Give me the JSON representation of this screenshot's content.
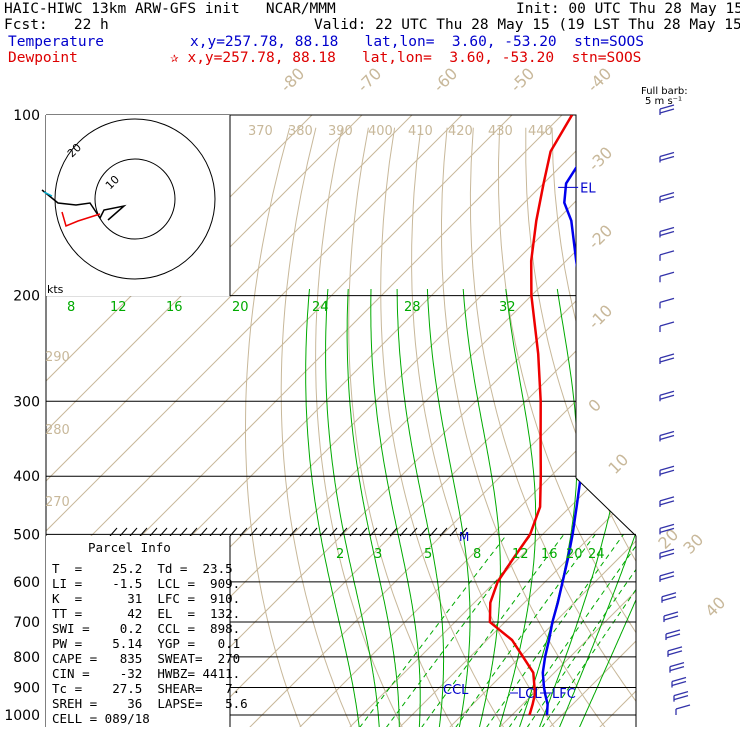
{
  "header": {
    "title": "HAIC-HIWC 13km ARW-GFS init   NCAR/MMM",
    "init": "Init: 00 UTC Thu 28 May 15",
    "fcst": "Fcst:   22 h",
    "valid": "Valid: 22 UTC Thu 28 May 15 (19 LST Thu 28 May 15)",
    "temp_label": "Temperature",
    "temp_readout": "x,y=257.78, 88.18   lat,lon=  3.60, -53.20  stn=SOOS",
    "dew_label": "Dewpoint",
    "dew_readout": "✰ x,y=257.78, 88.18   lat,lon=  3.60, -53.20  stn=SOOS"
  },
  "barb_legend": {
    "line1": "Full barb:",
    "line2": "5 m s⁻¹"
  },
  "hodograph": {
    "unit": "kts",
    "ring_labels": [
      "10",
      "20"
    ]
  },
  "parcel_info": {
    "title": "Parcel Info",
    "rows": [
      "T  =    25.2  Td =  23.5",
      "LI =    -1.5  LCL =  909.",
      "K  =      31  LFC =  910.",
      "TT =      42  EL  =  132.",
      "SWI =    0.2  CCL =  898.",
      "PW =    5.14  YGP =   0.1",
      "CAPE =   835  SWEAT=  270",
      "CIN =    -32  HWBZ= 4411.",
      "Tc =    27.5  SHEAR=   7.",
      "SREH =    36  LAPSE=   5.6",
      "CELL = 089/18"
    ]
  },
  "colors": {
    "temperature": "#0000ee",
    "dewpoint": "#ee0000",
    "isotherm": "#c8b89a",
    "adiabat": "#00aa00",
    "isobar": "#000000"
  },
  "chart_data": {
    "type": "line",
    "diagram": "skew-T log-p",
    "pressure_levels": [
      "100",
      "200",
      "300",
      "400",
      "500",
      "600",
      "700",
      "800",
      "900",
      "1000"
    ],
    "isotherm_labels": [
      "-80",
      "-70",
      "-60",
      "-50",
      "-40",
      "-30",
      "-20",
      "-10",
      "0",
      "10",
      "20",
      "30",
      "40"
    ],
    "theta_e_labels": [
      "370",
      "380",
      "390",
      "400",
      "410",
      "420",
      "430",
      "440"
    ],
    "theta_labels": [
      "290",
      "280",
      "270"
    ],
    "moist_adiabat_labels": [
      "8",
      "12",
      "16",
      "20",
      "24",
      "28",
      "32"
    ],
    "mixing_ratio_labels": [
      "2",
      "3",
      "5",
      "8",
      "12",
      "16",
      "20",
      "24"
    ],
    "annotations": [
      "EL",
      "CCL",
      "LCL",
      "LFC",
      "M"
    ],
    "series": [
      {
        "name": "Temperature",
        "points": [
          {
            "p": 1000,
            "t": 27
          },
          {
            "p": 960,
            "t": 25
          },
          {
            "p": 925,
            "t": 22.6
          },
          {
            "p": 900,
            "t": 20.9
          },
          {
            "p": 850,
            "t": 17.7
          },
          {
            "p": 800,
            "t": 15
          },
          {
            "p": 750,
            "t": 12.4
          },
          {
            "p": 700,
            "t": 9.5
          },
          {
            "p": 650,
            "t": 6.7
          },
          {
            "p": 600,
            "t": 3.5
          },
          {
            "p": 550,
            "t": 0
          },
          {
            "p": 500,
            "t": -4
          },
          {
            "p": 450,
            "t": -8.7
          },
          {
            "p": 400,
            "t": -14
          },
          {
            "p": 350,
            "t": -20.3
          },
          {
            "p": 300,
            "t": -28
          },
          {
            "p": 250,
            "t": -37.6
          },
          {
            "p": 200,
            "t": -50
          },
          {
            "p": 175,
            "t": -58
          },
          {
            "p": 150,
            "t": -67
          },
          {
            "p": 140,
            "t": -72
          },
          {
            "p": 130,
            "t": -75.5
          },
          {
            "p": 120,
            "t": -77
          },
          {
            "p": 110,
            "t": -76
          },
          {
            "p": 100,
            "t": -75
          }
        ]
      },
      {
        "name": "Dewpoint",
        "points": [
          {
            "p": 1000,
            "t": 23.5
          },
          {
            "p": 960,
            "t": 22
          },
          {
            "p": 925,
            "t": 20.5
          },
          {
            "p": 900,
            "t": 19
          },
          {
            "p": 850,
            "t": 15.8
          },
          {
            "p": 800,
            "t": 10.6
          },
          {
            "p": 750,
            "t": 5
          },
          {
            "p": 700,
            "t": -3
          },
          {
            "p": 650,
            "t": -6.8
          },
          {
            "p": 600,
            "t": -9.5
          },
          {
            "p": 550,
            "t": -11
          },
          {
            "p": 500,
            "t": -12.5
          },
          {
            "p": 450,
            "t": -16
          },
          {
            "p": 400,
            "t": -22
          },
          {
            "p": 350,
            "t": -29
          },
          {
            "p": 300,
            "t": -37
          },
          {
            "p": 250,
            "t": -47
          },
          {
            "p": 200,
            "t": -60
          },
          {
            "p": 175,
            "t": -67
          },
          {
            "p": 150,
            "t": -74
          },
          {
            "p": 130,
            "t": -80
          },
          {
            "p": 115,
            "t": -85
          },
          {
            "p": 100,
            "t": -88
          }
        ]
      }
    ],
    "wind_profile": [
      {
        "p": 100,
        "spd": 10
      },
      {
        "p": 120,
        "spd": 10
      },
      {
        "p": 140,
        "spd": 10
      },
      {
        "p": 160,
        "spd": 10
      },
      {
        "p": 175,
        "spd": 5
      },
      {
        "p": 190,
        "spd": 5
      },
      {
        "p": 210,
        "spd": 5
      },
      {
        "p": 230,
        "spd": 5
      },
      {
        "p": 260,
        "spd": 10
      },
      {
        "p": 300,
        "spd": 10
      },
      {
        "p": 350,
        "spd": 10
      },
      {
        "p": 400,
        "spd": 10
      },
      {
        "p": 450,
        "spd": 10
      },
      {
        "p": 500,
        "spd": 10
      },
      {
        "p": 550,
        "spd": 10
      },
      {
        "p": 600,
        "spd": 10
      },
      {
        "p": 650,
        "spd": 10
      },
      {
        "p": 700,
        "spd": 10
      },
      {
        "p": 750,
        "spd": 10
      },
      {
        "p": 800,
        "spd": 10
      },
      {
        "p": 850,
        "spd": 10
      },
      {
        "p": 900,
        "spd": 10
      },
      {
        "p": 950,
        "spd": 10
      },
      {
        "p": 1000,
        "spd": 5
      }
    ]
  }
}
